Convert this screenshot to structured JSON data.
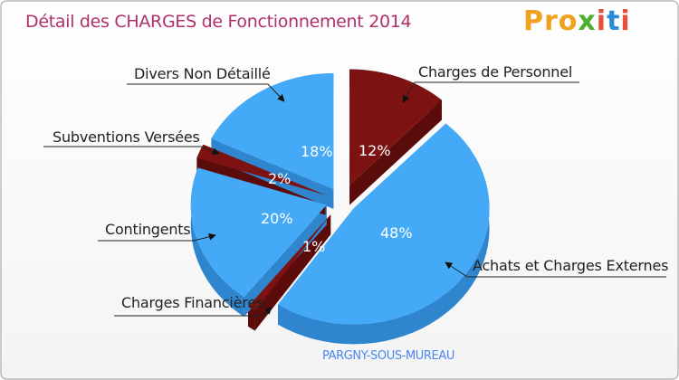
{
  "title": "Détail des CHARGES de Fonctionnement 2014",
  "logo": {
    "text": "Proxiti",
    "colors": [
      "#f0a21c",
      "#f0a21c",
      "#f0a21c",
      "#4caf2f",
      "#e94e3b",
      "#2a8bd6",
      "#e94e3b"
    ]
  },
  "commune": "PARGNY-SOUS-MUREAU",
  "colors": {
    "blue": "#44a9f6",
    "blue_dark": "#2f86cf",
    "red": "#7d1212",
    "red_dark": "#5c0b0b",
    "title": "#b0306a",
    "commune": "#4a86f0"
  },
  "chart_data": {
    "type": "pie",
    "title": "Détail des CHARGES de Fonctionnement 2014",
    "slices": [
      {
        "label": "Charges de Personnel",
        "value": 12,
        "pct_label": "12%"
      },
      {
        "label": "Achats et Charges Externes",
        "value": 48,
        "pct_label": "48%"
      },
      {
        "label": "Charges Financières",
        "value": 1,
        "pct_label": "1%"
      },
      {
        "label": "Contingents",
        "value": 20,
        "pct_label": "20%"
      },
      {
        "label": "Subventions Versées",
        "value": 2,
        "pct_label": "2%"
      },
      {
        "label": "Divers Non Détaillé",
        "value": 18,
        "pct_label": "18%"
      }
    ]
  }
}
